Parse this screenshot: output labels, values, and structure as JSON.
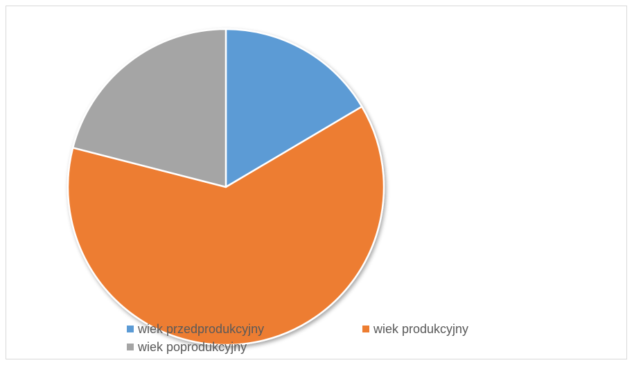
{
  "chart_data": {
    "type": "pie",
    "categories": [
      "wiek przedprodukcyjny",
      "wiek produkcyjny",
      "wiek poprodukcyjny"
    ],
    "values": [
      16.5,
      62.5,
      21.0
    ],
    "colors": [
      "#5b9bd5",
      "#ed7d31",
      "#a5a5a5"
    ],
    "title": "",
    "legend_position": "bottom"
  }
}
